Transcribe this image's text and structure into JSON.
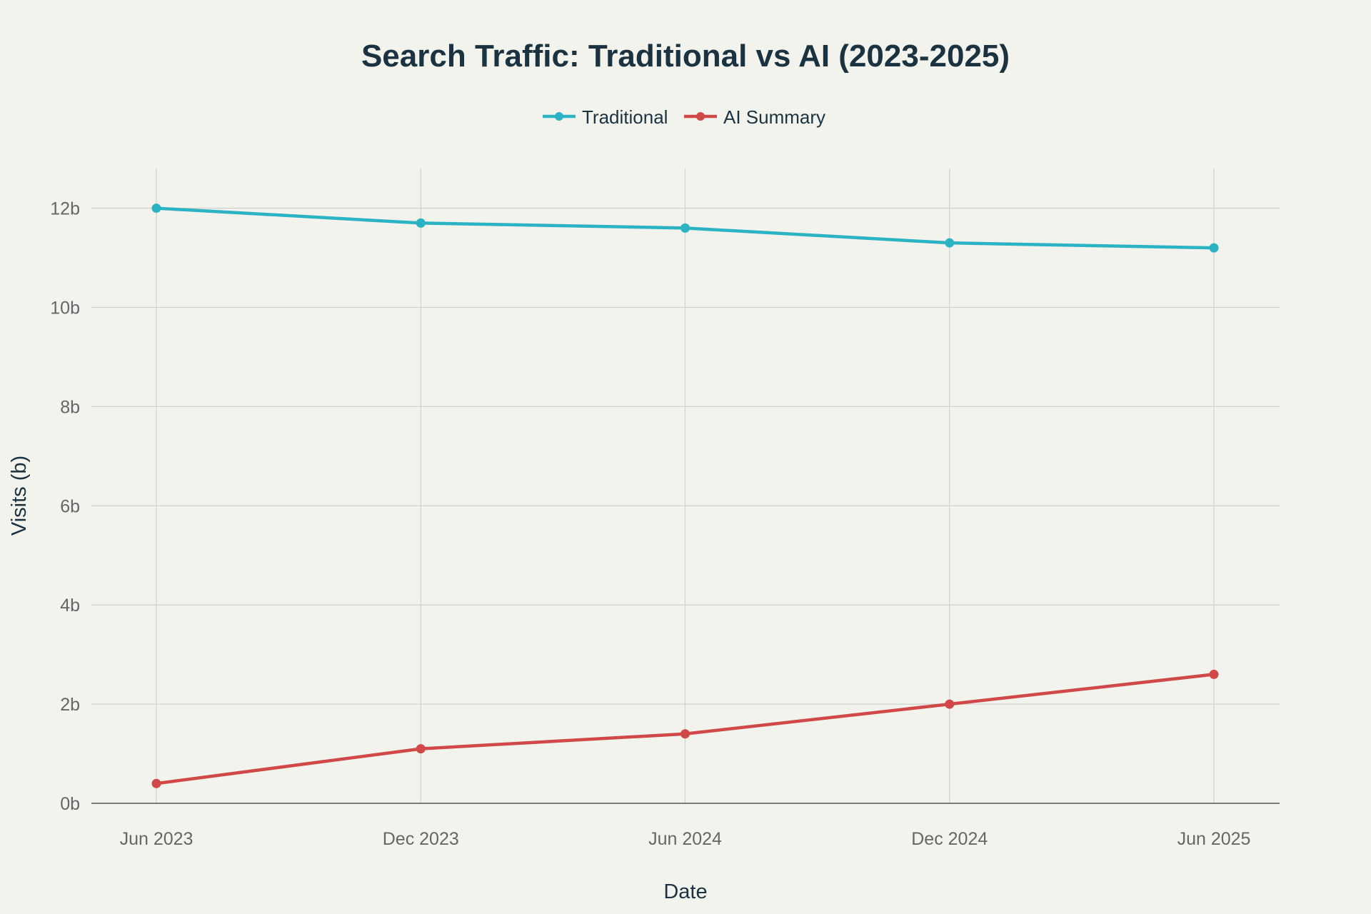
{
  "chart_data": {
    "type": "line",
    "title": "Search Traffic: Traditional vs AI (2023-2025)",
    "xlabel": "Date",
    "ylabel": "Visits (b)",
    "categories": [
      "Jun 2023",
      "Dec 2023",
      "Jun 2024",
      "Dec 2024",
      "Jun 2025"
    ],
    "ylim": [
      0,
      12.8
    ],
    "yticks": [
      0,
      2,
      4,
      6,
      8,
      10,
      12
    ],
    "ytick_labels": [
      "0b",
      "2b",
      "4b",
      "6b",
      "8b",
      "10b",
      "12b"
    ],
    "grid": true,
    "legend_position": "top-center",
    "series": [
      {
        "name": "Traditional",
        "color": "#2bb3c4",
        "values": [
          12.0,
          11.7,
          11.6,
          11.3,
          11.2
        ]
      },
      {
        "name": "AI Summary",
        "color": "#d04848",
        "values": [
          0.4,
          1.1,
          1.4,
          2.0,
          2.6
        ]
      }
    ]
  }
}
